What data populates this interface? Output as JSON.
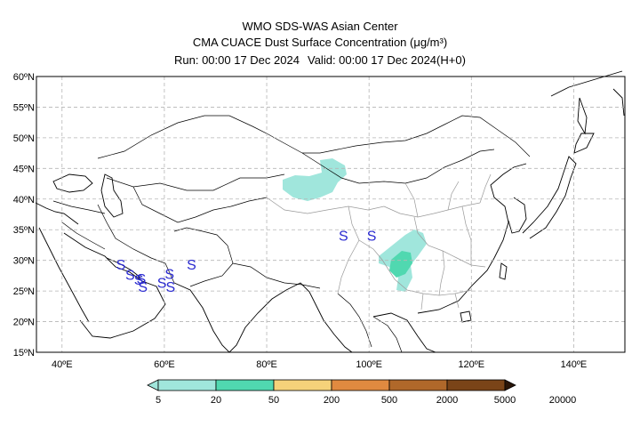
{
  "header": {
    "line1": "WMO SDS-WAS Asian Center",
    "line2": "CMA CUACE Dust Surface Concentration (μg/m³)",
    "run": "Run: 00:00 17 Dec 2024",
    "valid": "Valid: 00:00 17 Dec 2024(H+0)"
  },
  "map": {
    "lon_range": [
      35,
      150
    ],
    "lat_range": [
      15,
      60
    ],
    "lon_ticks": [
      "40ºE",
      "60ºE",
      "80ºE",
      "100ºE",
      "120ºE",
      "140ºE"
    ],
    "lat_ticks": [
      "60ºN",
      "55ºN",
      "50ºN",
      "45ºN",
      "40ºN",
      "35ºN",
      "30ºN",
      "25ºN",
      "20ºN",
      "15ºN"
    ],
    "grid": true,
    "dust_symbol": "S",
    "dust_markers": [
      {
        "lon": 95,
        "lat": 33.2
      },
      {
        "lon": 100.5,
        "lat": 33.2
      },
      {
        "lon": 51.5,
        "lat": 28.5
      },
      {
        "lon": 53.3,
        "lat": 26.8
      },
      {
        "lon": 55.0,
        "lat": 26.0
      },
      {
        "lon": 55.8,
        "lat": 24.9
      },
      {
        "lon": 55.5,
        "lat": 26.2
      },
      {
        "lon": 59.5,
        "lat": 25.5
      },
      {
        "lon": 61.2,
        "lat": 24.9
      },
      {
        "lon": 61.0,
        "lat": 27.0
      },
      {
        "lon": 65.3,
        "lat": 28.5
      }
    ]
  },
  "legend": {
    "labels": [
      "5",
      "20",
      "50",
      "200",
      "500",
      "2000",
      "5000",
      "20000"
    ],
    "colors": [
      "#a0e6dc",
      "#50d8b0",
      "#f5d27a",
      "#e08a40",
      "#b0682a",
      "#7a4418",
      "#4a2a10",
      "#2a1608"
    ]
  }
}
